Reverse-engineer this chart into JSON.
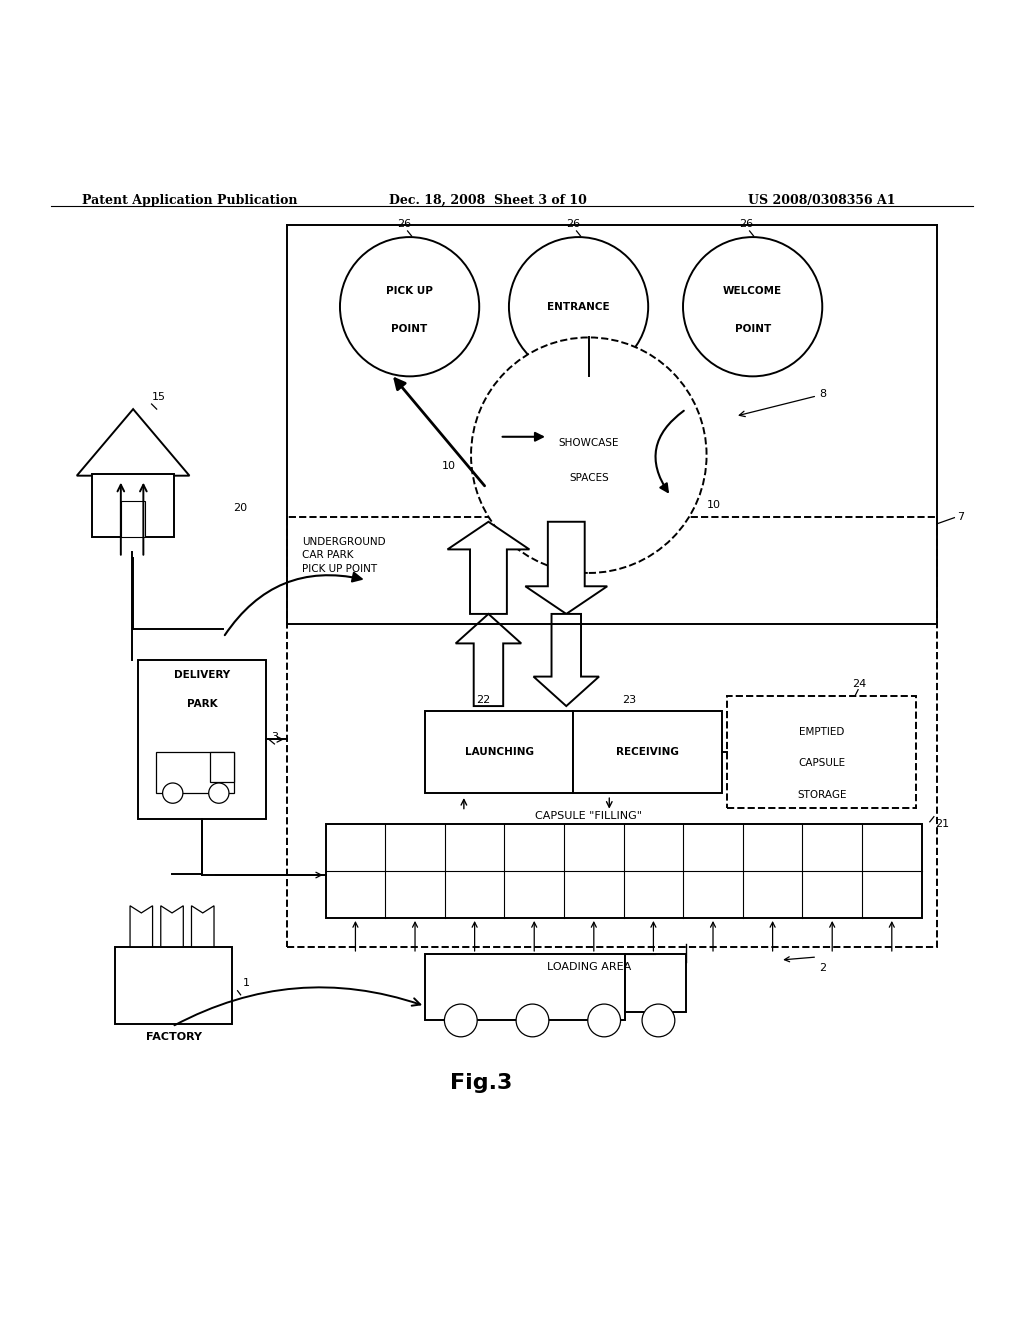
{
  "bg_color": "#ffffff",
  "header_left": "Patent Application Publication",
  "header_mid": "Dec. 18, 2008  Sheet 3 of 10",
  "header_right": "US 2008/0308356 A1",
  "fig_label": "Fig.3"
}
